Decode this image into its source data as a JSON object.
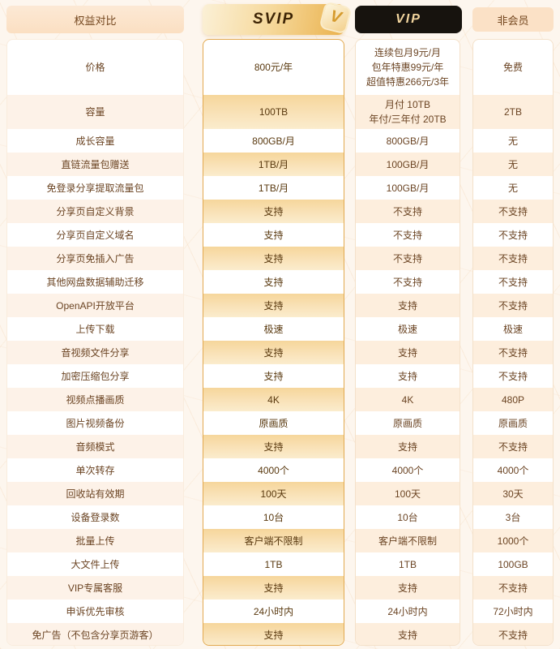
{
  "header": {
    "compare_label": "权益对比",
    "svip_label": "SVIP",
    "svip_badge_glyph": "V",
    "vip_label": "VIP",
    "free_label": "非会员"
  },
  "colors": {
    "accent_gold": "#eab14c",
    "vip_header_bg": "#17130e",
    "vip_header_text": "#f2d59e",
    "peach_header_bg": "#fbe1c6",
    "text_brown": "#6b4423",
    "svip_border": "#e2a94f",
    "page_bg": "#fdf6ee"
  },
  "table": {
    "columns": [
      "权益对比",
      "SVIP",
      "VIP",
      "非会员"
    ],
    "rows": [
      {
        "label": "价格",
        "svip": "800元/年",
        "vip": "连续包月9元/月\n包年特惠99元/年\n超值特惠266元/3年",
        "free": "免费"
      },
      {
        "label": "容量",
        "svip": "100TB",
        "vip": "月付 10TB\n年付/三年付 20TB",
        "free": "2TB"
      },
      {
        "label": "成长容量",
        "svip": "800GB/月",
        "vip": "800GB/月",
        "free": "无"
      },
      {
        "label": "直链流量包赠送",
        "svip": "1TB/月",
        "vip": "100GB/月",
        "free": "无"
      },
      {
        "label": "免登录分享提取流量包",
        "svip": "1TB/月",
        "vip": "100GB/月",
        "free": "无"
      },
      {
        "label": "分享页自定义背景",
        "svip": "支持",
        "vip": "不支持",
        "free": "不支持"
      },
      {
        "label": "分享页自定义域名",
        "svip": "支持",
        "vip": "不支持",
        "free": "不支持"
      },
      {
        "label": "分享页免插入广告",
        "svip": "支持",
        "vip": "不支持",
        "free": "不支持"
      },
      {
        "label": "其他网盘数据辅助迁移",
        "svip": "支持",
        "vip": "不支持",
        "free": "不支持"
      },
      {
        "label": "OpenAPI开放平台",
        "svip": "支持",
        "vip": "支持",
        "free": "不支持"
      },
      {
        "label": "上传下载",
        "svip": "极速",
        "vip": "极速",
        "free": "极速"
      },
      {
        "label": "音视频文件分享",
        "svip": "支持",
        "vip": "支持",
        "free": "不支持"
      },
      {
        "label": "加密压缩包分享",
        "svip": "支持",
        "vip": "支持",
        "free": "不支持"
      },
      {
        "label": "视频点播画质",
        "svip": "4K",
        "vip": "4K",
        "free": "480P"
      },
      {
        "label": "图片视频备份",
        "svip": "原画质",
        "vip": "原画质",
        "free": "原画质"
      },
      {
        "label": "音频模式",
        "svip": "支持",
        "vip": "支持",
        "free": "不支持"
      },
      {
        "label": "单次转存",
        "svip": "4000个",
        "vip": "4000个",
        "free": "4000个"
      },
      {
        "label": "回收站有效期",
        "svip": "100天",
        "vip": "100天",
        "free": "30天"
      },
      {
        "label": "设备登录数",
        "svip": "10台",
        "vip": "10台",
        "free": "3台"
      },
      {
        "label": "批量上传",
        "svip": "客户端不限制",
        "vip": "客户端不限制",
        "free": "1000个"
      },
      {
        "label": "大文件上传",
        "svip": "1TB",
        "vip": "1TB",
        "free": "100GB"
      },
      {
        "label": "VIP专属客服",
        "svip": "支持",
        "vip": "支持",
        "free": "不支持"
      },
      {
        "label": "申诉优先审核",
        "svip": "24小时内",
        "vip": "24小时内",
        "free": "72小时内"
      },
      {
        "label": "免广告（不包含分享页游客）",
        "svip": "支持",
        "vip": "支持",
        "free": "不支持"
      }
    ]
  }
}
